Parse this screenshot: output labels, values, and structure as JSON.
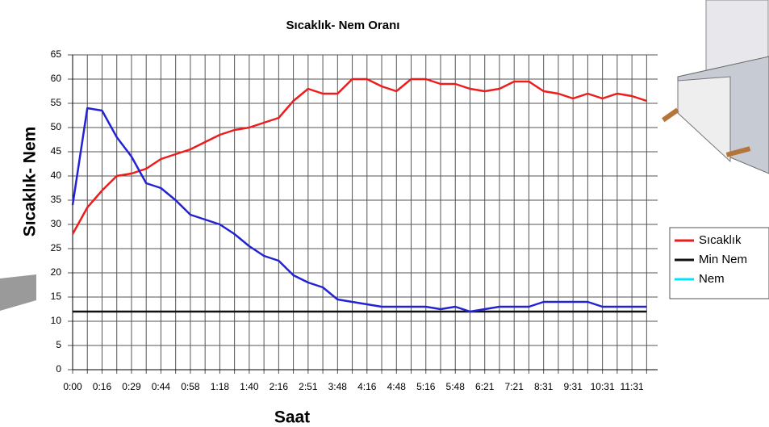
{
  "chart_data": {
    "type": "line",
    "title": "Sıcaklık- Nem Oranı",
    "y_label": "Sıcaklık- Nem",
    "x_label": "Saat",
    "categories": [
      "0:00",
      null,
      "0:16",
      null,
      "0:29",
      null,
      "0:44",
      null,
      "0:58",
      null,
      "1:18",
      null,
      "1:40",
      null,
      "2:16",
      null,
      "2:51",
      null,
      "3:48",
      null,
      "4:16",
      null,
      "4:48",
      null,
      "5:16",
      null,
      "5:48",
      null,
      "6:21",
      null,
      "7:21",
      null,
      "8:31",
      null,
      "9:31",
      null,
      "10:31",
      null,
      "11:31",
      null
    ],
    "series": [
      {
        "name": "Sıcaklık",
        "color": "#ee1c1c",
        "values": [
          28,
          33.5,
          37,
          40,
          40.5,
          41.5,
          43.5,
          44.5,
          45.5,
          47,
          48.5,
          49.5,
          50,
          51,
          52,
          55.5,
          58,
          57,
          57,
          60,
          60,
          58.5,
          57.5,
          60,
          60,
          59,
          59,
          58,
          57.5,
          58,
          59.5,
          59.5,
          57.5,
          57,
          56,
          57,
          56,
          57,
          56.5,
          55.5
        ]
      },
      {
        "name": "Min Nem",
        "color": "#111111",
        "values": [
          12,
          12,
          12,
          12,
          12,
          12,
          12,
          12,
          12,
          12,
          12,
          12,
          12,
          12,
          12,
          12,
          12,
          12,
          12,
          12,
          12,
          12,
          12,
          12,
          12,
          12,
          12,
          12,
          12,
          12,
          12,
          12,
          12,
          12,
          12,
          12,
          12,
          12,
          12,
          12
        ]
      },
      {
        "name": "Nem",
        "color": "#2323d6",
        "legend_color": "#00e5ff",
        "values": [
          34,
          54,
          53.5,
          48,
          44,
          38.5,
          37.5,
          35,
          32,
          31,
          30,
          28,
          25.5,
          23.5,
          22.5,
          19.5,
          18,
          17,
          14.5,
          14,
          13.5,
          13,
          13,
          13,
          13,
          12.5,
          13,
          12,
          12.5,
          13,
          13,
          13,
          14,
          14,
          14,
          14,
          13,
          13,
          13,
          13
        ]
      }
    ],
    "ylim": [
      0,
      65
    ],
    "yticks": [
      0,
      5,
      10,
      15,
      20,
      25,
      30,
      35,
      40,
      45,
      50,
      55,
      60,
      65
    ],
    "grid": true,
    "legend": "right"
  }
}
